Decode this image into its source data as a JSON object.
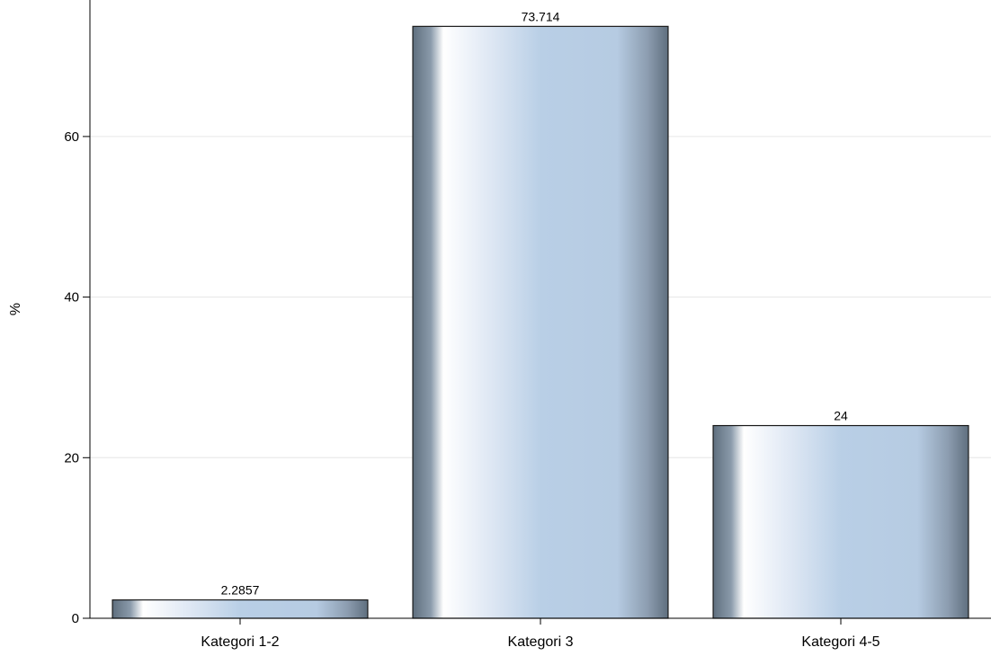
{
  "chart_data": {
    "type": "bar",
    "title": "",
    "xlabel": "",
    "ylabel": "%",
    "categories": [
      "Kategori 1-2",
      "Kategori 3",
      "Kategori 4-5"
    ],
    "values": [
      2.2857,
      73.714,
      24
    ],
    "data_labels": [
      "2.2857",
      "73.714",
      "24"
    ],
    "y_ticks": [
      0,
      20,
      40,
      60
    ],
    "y_tick_labels": [
      "0",
      "20",
      "40",
      "60"
    ],
    "ylim": [
      0,
      77
    ],
    "grid": true,
    "legend": "none",
    "colors": {
      "bar_light": "#ffffff",
      "bar_mid": "#b8cfe6",
      "bar_dark": "#6e7f8f",
      "bar_outline": "#1a1a1a",
      "grid": "#e6e6e6",
      "axis": "#000000"
    }
  }
}
